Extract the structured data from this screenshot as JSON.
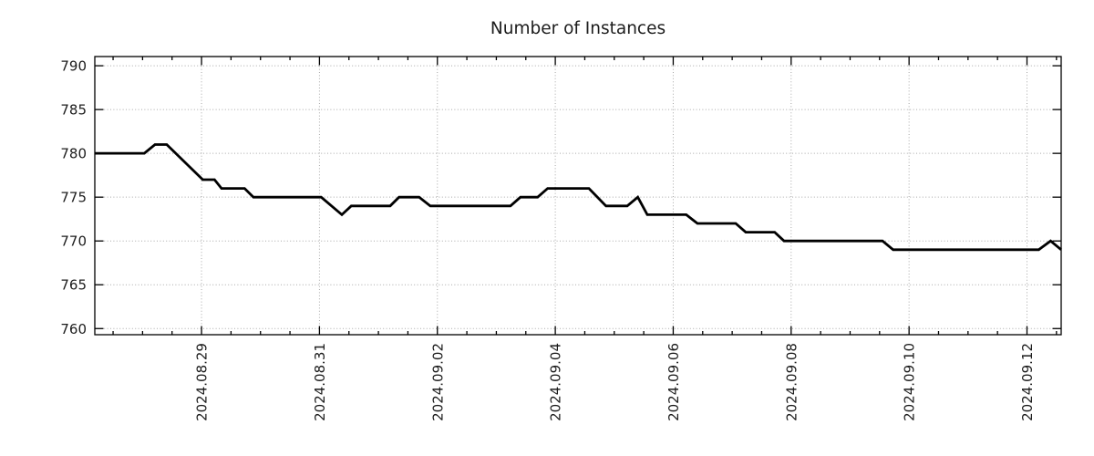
{
  "title": "Number of Instances",
  "chart_data": {
    "type": "line",
    "title": "Number of Instances",
    "legend": "none",
    "grid": "dotted-major-both-axes",
    "styles": {
      "line_color": "#000000",
      "grid_color": "#a8a8a8",
      "axis_color": "#000000",
      "text_color": "#1c1c1c",
      "background": "#ffffff"
    },
    "x_axis": {
      "unit": "date",
      "range_days": [
        -1.81,
        14.58
      ],
      "epoch_label": "days relative to 2024.08.29",
      "minor_tick_interval_days": 0.5,
      "major_tick_interval_days": 2,
      "major_ticks": [
        {
          "t": 0,
          "label": "2024.08.29"
        },
        {
          "t": 2,
          "label": "2024.08.31"
        },
        {
          "t": 4,
          "label": "2024.09.02"
        },
        {
          "t": 6,
          "label": "2024.09.04"
        },
        {
          "t": 8,
          "label": "2024.09.06"
        },
        {
          "t": 10,
          "label": "2024.09.08"
        },
        {
          "t": 12,
          "label": "2024.09.10"
        },
        {
          "t": 14,
          "label": "2024.09.12"
        }
      ]
    },
    "y_axis": {
      "range": [
        759.3,
        791.05
      ],
      "major_ticks": [
        760,
        765,
        770,
        775,
        780,
        785,
        790
      ]
    },
    "series": [
      {
        "name": "instances",
        "color": "#000000",
        "points": [
          [
            -1.81,
            780
          ],
          [
            -0.97,
            780
          ],
          [
            -0.79,
            781
          ],
          [
            -0.59,
            781
          ],
          [
            0.02,
            777
          ],
          [
            0.22,
            777
          ],
          [
            0.34,
            776
          ],
          [
            0.73,
            776
          ],
          [
            0.88,
            775
          ],
          [
            2.03,
            775
          ],
          [
            2.38,
            773
          ],
          [
            2.54,
            774
          ],
          [
            3.2,
            774
          ],
          [
            3.35,
            775
          ],
          [
            3.69,
            775
          ],
          [
            3.88,
            774
          ],
          [
            5.24,
            774
          ],
          [
            5.41,
            775
          ],
          [
            5.7,
            775
          ],
          [
            5.87,
            776
          ],
          [
            6.57,
            776
          ],
          [
            6.86,
            774
          ],
          [
            7.22,
            774
          ],
          [
            7.4,
            775
          ],
          [
            7.56,
            773
          ],
          [
            8.22,
            773
          ],
          [
            8.41,
            772
          ],
          [
            9.06,
            772
          ],
          [
            9.23,
            771
          ],
          [
            9.72,
            771
          ],
          [
            9.88,
            770
          ],
          [
            11.55,
            770
          ],
          [
            11.73,
            769
          ],
          [
            14.2,
            769
          ],
          [
            14.4,
            770
          ],
          [
            14.58,
            769
          ]
        ]
      }
    ]
  }
}
